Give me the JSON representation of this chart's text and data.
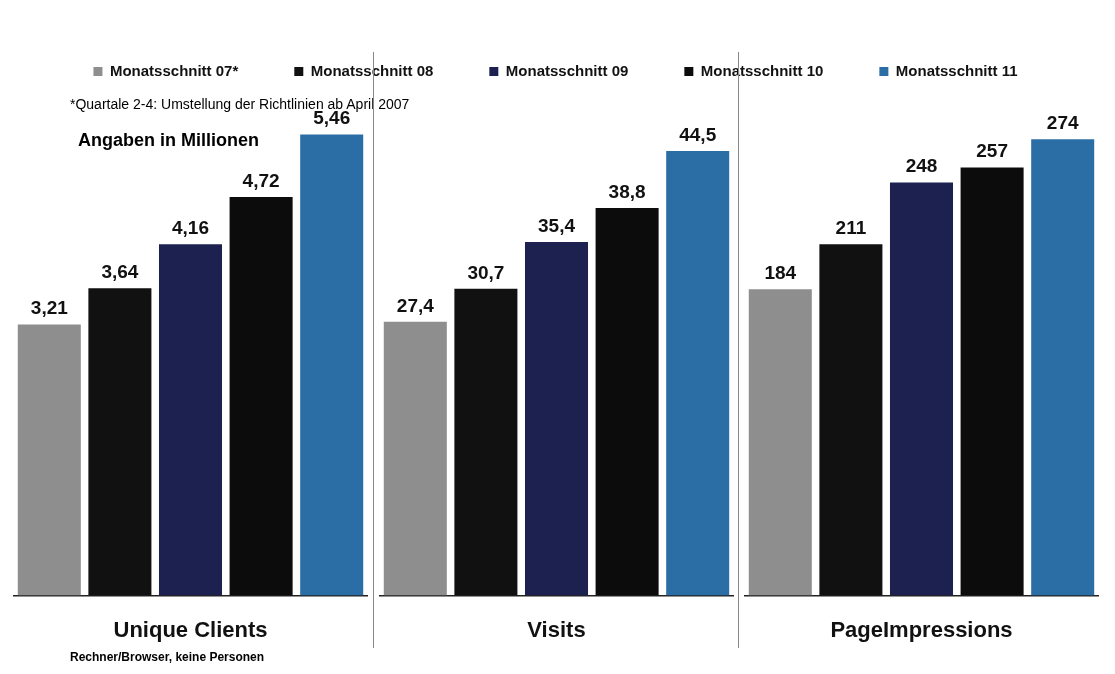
{
  "chart_data": [
    {
      "type": "bar",
      "stacked": true,
      "xlabel": "Unique Clients",
      "legend": "top",
      "annotations": [
        "*Quartale 2-4: Umstellung der Richtlinien ab April 2007",
        "Angaben in Millionen",
        "Rechner/Browser, keine Personen"
      ],
      "categories": [
        null,
        null,
        null,
        null,
        null
      ],
      "series": [
        {
          "name": "Monatsschnitt 07*",
          "color": "#8e8e8e",
          "values": [
            3.21,
            null,
            null,
            null,
            null
          ],
          "value_labels": [
            "3,21",
            null,
            null,
            null,
            null
          ]
        },
        {
          "name": "Monatsschnitt 08",
          "color": "#111111",
          "values": [
            null,
            3.64,
            null,
            null,
            null
          ],
          "value_labels": [
            null,
            "3,64",
            null,
            null,
            null
          ]
        },
        {
          "name": "Monatsschnitt 09",
          "color": "#1d2150",
          "values": [
            null,
            null,
            4.16,
            null,
            null
          ],
          "value_labels": [
            null,
            null,
            "4,16",
            null,
            null
          ]
        },
        {
          "name": "Monatsschnitt 10",
          "color": "#0c0c0c",
          "values": [
            null,
            null,
            null,
            4.72,
            null
          ],
          "value_labels": [
            null,
            null,
            null,
            "4,72",
            null
          ]
        },
        {
          "name": "Monatsschnitt 11",
          "color": "#2b6ea6",
          "values": [
            null,
            null,
            null,
            null,
            5.46
          ],
          "value_labels": [
            null,
            null,
            null,
            null,
            "5,46"
          ]
        }
      ]
    },
    {
      "type": "bar",
      "stacked": true,
      "xlabel": "Visits",
      "categories": [
        null,
        null,
        null,
        null,
        null
      ],
      "series": [
        {
          "color": "#8e8e8e",
          "values": [
            27.4,
            null,
            null,
            null,
            null
          ],
          "value_labels": [
            "27,4",
            null,
            null,
            null,
            null
          ]
        },
        {
          "color": "#111111",
          "values": [
            null,
            30.7,
            null,
            null,
            null
          ],
          "value_labels": [
            null,
            "30,7",
            null,
            null,
            null
          ]
        },
        {
          "color": "#1d2150",
          "values": [
            null,
            null,
            35.4,
            null,
            null
          ],
          "value_labels": [
            null,
            null,
            "35,4",
            null,
            null
          ]
        },
        {
          "color": "#0c0c0c",
          "values": [
            null,
            null,
            null,
            38.8,
            null
          ],
          "value_labels": [
            null,
            null,
            null,
            "38,8",
            null
          ]
        },
        {
          "color": "#2b6ea6",
          "values": [
            null,
            null,
            null,
            null,
            44.5
          ],
          "value_labels": [
            null,
            null,
            null,
            null,
            "44,5"
          ]
        }
      ]
    },
    {
      "type": "bar",
      "stacked": true,
      "xlabel": "PageImpressions",
      "data_labels": true,
      "categories": [
        null,
        null,
        null,
        null,
        null
      ],
      "series": [
        {
          "color": "#8e8e8e",
          "values": [
            184,
            null,
            null,
            null,
            null
          ]
        },
        {
          "color": "#111111",
          "values": [
            null,
            211,
            null,
            null,
            null
          ]
        },
        {
          "color": "#1d2150",
          "values": [
            null,
            null,
            248,
            null,
            null
          ]
        },
        {
          "color": "#0c0c0c",
          "values": [
            null,
            null,
            null,
            257,
            null
          ]
        },
        {
          "color": "#2b6ea6",
          "values": [
            null,
            null,
            null,
            null,
            274
          ]
        }
      ]
    }
  ]
}
